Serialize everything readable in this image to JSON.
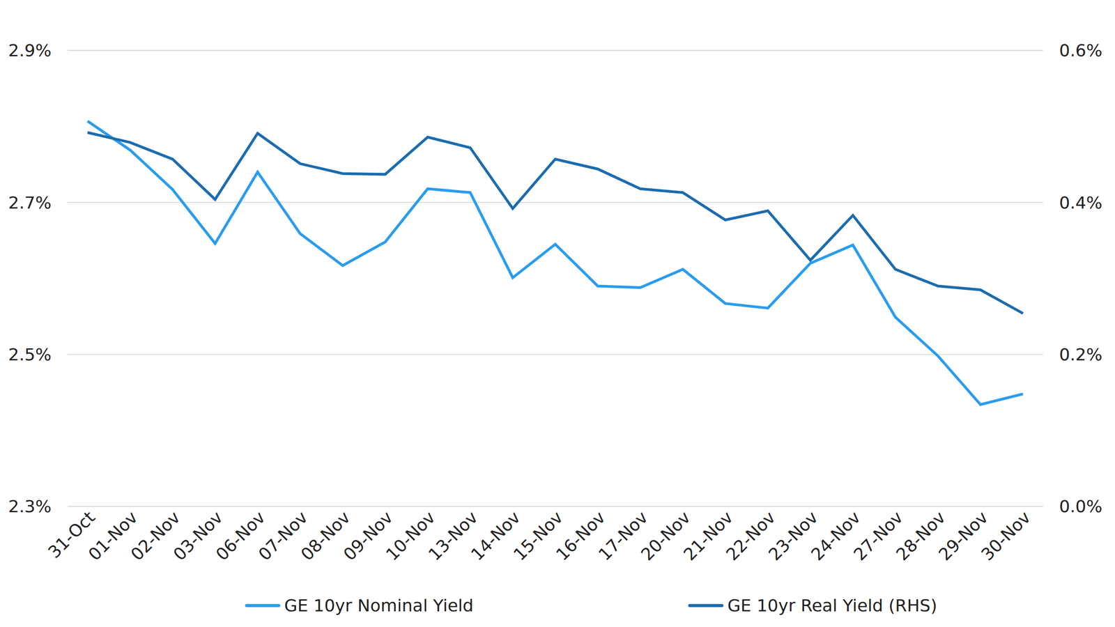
{
  "chart_data": {
    "type": "line",
    "categories": [
      "31-Oct",
      "01-Nov",
      "02-Nov",
      "03-Nov",
      "06-Nov",
      "07-Nov",
      "08-Nov",
      "09-Nov",
      "10-Nov",
      "13-Nov",
      "14-Nov",
      "15-Nov",
      "16-Nov",
      "17-Nov",
      "20-Nov",
      "21-Nov",
      "22-Nov",
      "23-Nov",
      "24-Nov",
      "27-Nov",
      "28-Nov",
      "29-Nov",
      "30-Nov"
    ],
    "series": [
      {
        "name": "GE 10yr Nominal Yield",
        "color": "#2a9cee",
        "values": [
          2.807,
          2.769,
          2.717,
          2.646,
          2.74,
          2.659,
          2.617,
          2.648,
          2.718,
          2.713,
          2.601,
          2.645,
          2.59,
          2.588,
          2.612,
          2.567,
          2.561,
          2.62,
          2.644,
          2.549,
          2.498,
          2.434,
          2.448
        ]
      },
      {
        "name": "GE 10yr Real Yield (RHS)",
        "color": "#1b6cae",
        "axis": "y2",
        "values": [
          0.492,
          0.479,
          0.457,
          0.404,
          0.491,
          0.451,
          0.438,
          0.437,
          0.486,
          0.472,
          0.392,
          0.457,
          0.444,
          0.418,
          0.413,
          0.377,
          0.389,
          0.324,
          0.383,
          0.312,
          0.29,
          0.285,
          0.254
        ]
      }
    ],
    "ylim": [
      2.3,
      2.9
    ],
    "yticks": [
      {
        "value": 2.3,
        "label": "2.3%"
      },
      {
        "value": 2.5,
        "label": "2.5%"
      },
      {
        "value": 2.7,
        "label": "2.7%"
      },
      {
        "value": 2.9,
        "label": "2.9%"
      }
    ],
    "y2lim": [
      0.0,
      0.6
    ],
    "y2ticks": [
      {
        "value": 0.0,
        "label": "0.0%"
      },
      {
        "value": 0.2,
        "label": "0.2%"
      },
      {
        "value": 0.4,
        "label": "0.4%"
      },
      {
        "value": 0.6,
        "label": "0.6%"
      }
    ],
    "grid": true,
    "legend": "bottom"
  }
}
